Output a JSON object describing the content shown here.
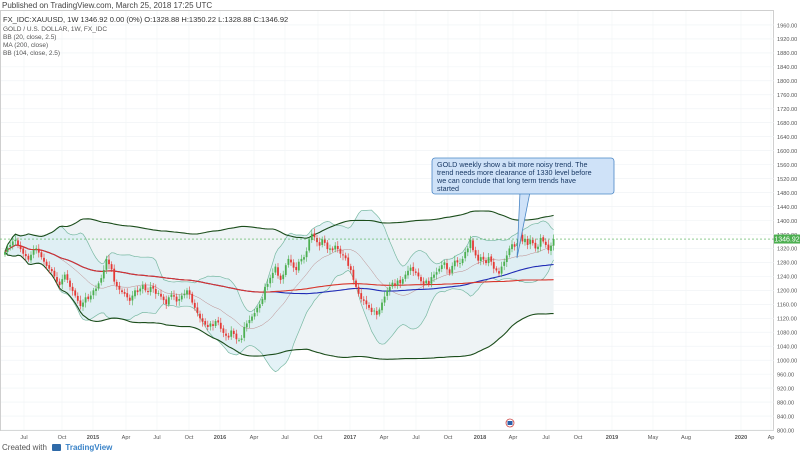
{
  "header": {
    "published": "Published on TradingView.com, March 25, 2018 17:25 UTC",
    "ohlc_line": "FX_IDC:XAUUSD, 1W 1346.92 0.00 (0%) O:1328.88 H:1350.22 L:1328.88 C:1346.92"
  },
  "legend": {
    "title": "GOLD / U.S. DOLLAR, 1W, FX_IDC",
    "bb1": "BB (20, close, 2.5)",
    "ma": "MA (200, close)",
    "bb2": "BB (104, close, 2.5)"
  },
  "annotation": {
    "text_lines": [
      "GOLD weekly show a bit more noisy trend. The",
      "trend needs more clearance of 1330 level before",
      "we can conclude that long term trends have",
      "started"
    ]
  },
  "price_label": "1346.92",
  "footer": {
    "created": "Created with",
    "brand": "TradingView"
  },
  "colors": {
    "up": "#4caf50",
    "down": "#e53935",
    "ma200": "#d8352b",
    "bb104_mid": "#1f2bb5",
    "bb104_band": "#1b4d1b",
    "bb20_band": "#79b9a3",
    "bb20_fill": "#d9edf4",
    "bb104_fill": "#eef3f5",
    "annotation_bg": "#cfe2f8",
    "annotation_border": "#4a86c5"
  },
  "chart_data": {
    "type": "candlestick",
    "symbol": "FX_IDC:XAUUSD",
    "timeframe": "1W",
    "ylim": [
      800,
      2000
    ],
    "yticks": [
      800,
      840,
      880,
      920,
      960,
      1000,
      1040,
      1080,
      1120,
      1160,
      1200,
      1240,
      1280,
      1320,
      1360,
      1400,
      1440,
      1480,
      1520,
      1560,
      1600,
      1640,
      1680,
      1720,
      1760,
      1800,
      1840,
      1880,
      1920,
      1960
    ],
    "xticks": [
      "Jul",
      "Oct",
      "2015",
      "Apr",
      "Jul",
      "Oct",
      "2016",
      "Apr",
      "Jul",
      "Oct",
      "2017",
      "Apr",
      "Jul",
      "Oct",
      "2018",
      "Apr",
      "Jul",
      "Oct",
      "2019",
      "May",
      "Aug",
      "2020",
      "Ap"
    ],
    "close": [
      1310,
      1322,
      1330,
      1340,
      1345,
      1328,
      1318,
      1305,
      1298,
      1288,
      1302,
      1315,
      1320,
      1308,
      1295,
      1282,
      1270,
      1262,
      1255,
      1240,
      1225,
      1215,
      1232,
      1245,
      1230,
      1210,
      1198,
      1185,
      1170,
      1155,
      1165,
      1180,
      1175,
      1185,
      1200,
      1205,
      1220,
      1235,
      1258,
      1290,
      1275,
      1260,
      1225,
      1212,
      1202,
      1195,
      1190,
      1180,
      1170,
      1185,
      1200,
      1195,
      1205,
      1215,
      1200,
      1195,
      1210,
      1205,
      1190,
      1192,
      1182,
      1172,
      1160,
      1180,
      1188,
      1182,
      1168,
      1175,
      1185,
      1190,
      1200,
      1188,
      1165,
      1150,
      1135,
      1120,
      1110,
      1102,
      1095,
      1105,
      1098,
      1112,
      1108,
      1090,
      1078,
      1070,
      1065,
      1085,
      1075,
      1060,
      1058,
      1062,
      1095,
      1105,
      1115,
      1125,
      1135,
      1150,
      1160,
      1175,
      1210,
      1218,
      1236,
      1250,
      1268,
      1242,
      1230,
      1245,
      1272,
      1290,
      1280,
      1265,
      1258,
      1282,
      1290,
      1295,
      1312,
      1345,
      1362,
      1352,
      1338,
      1328,
      1346,
      1336,
      1318,
      1320,
      1315,
      1328,
      1318,
      1305,
      1300,
      1292,
      1270,
      1258,
      1230,
      1210,
      1190,
      1175,
      1170,
      1160,
      1150,
      1138,
      1142,
      1130,
      1145,
      1165,
      1182,
      1200,
      1210,
      1222,
      1215,
      1228,
      1220,
      1232,
      1245,
      1256,
      1265,
      1255,
      1250,
      1240,
      1226,
      1218,
      1228,
      1218,
      1238,
      1245,
      1252,
      1262,
      1272,
      1280,
      1260,
      1248,
      1270,
      1285,
      1280,
      1278,
      1290,
      1310,
      1320,
      1345,
      1315,
      1300,
      1285,
      1295,
      1288,
      1278,
      1295,
      1282,
      1262,
      1257,
      1248,
      1268,
      1282,
      1300,
      1320,
      1332,
      1325,
      1335,
      1358,
      1340,
      1347,
      1330,
      1345,
      1335,
      1320,
      1325,
      1350,
      1340,
      1330,
      1315,
      1328,
      1346.92
    ]
  }
}
